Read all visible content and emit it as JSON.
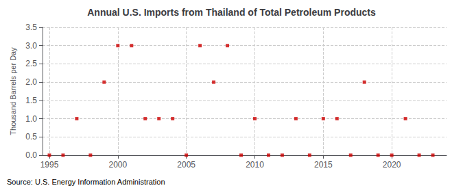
{
  "chart_data": {
    "type": "scatter",
    "title": "Annual U.S. Imports from Thailand of Total Petroleum Products",
    "ylabel": "Thousand Barrels per Day",
    "annotations": [
      "Source: U.S. Energy Information Administration"
    ],
    "x": [
      1995,
      1996,
      1997,
      1998,
      1999,
      2000,
      2001,
      2002,
      2003,
      2004,
      2005,
      2006,
      2007,
      2008,
      2009,
      2010,
      2011,
      2012,
      2013,
      2014,
      2015,
      2016,
      2017,
      2018,
      2019,
      2020,
      2021,
      2022,
      2023
    ],
    "values": [
      0,
      0,
      1,
      0,
      2,
      3,
      3,
      1,
      1,
      1,
      0,
      3,
      2,
      3,
      0,
      1,
      0,
      0,
      1,
      0,
      1,
      1,
      0,
      2,
      0,
      0,
      1,
      0,
      0
    ],
    "color": "#cc0000",
    "marker": "square",
    "xlim": [
      1994.5,
      2024
    ],
    "xticks": [
      1995,
      2000,
      2005,
      2010,
      2015,
      2020
    ],
    "ylim": [
      0,
      3.5
    ],
    "yticks": [
      {
        "value": 0,
        "label": "0.0"
      },
      0.5,
      {
        "value": 1,
        "label": "1.0"
      },
      1.5,
      {
        "value": 2,
        "label": "2.0"
      },
      2.5,
      {
        "value": 3,
        "label": "3.0"
      },
      3.5
    ],
    "grid": true
  }
}
